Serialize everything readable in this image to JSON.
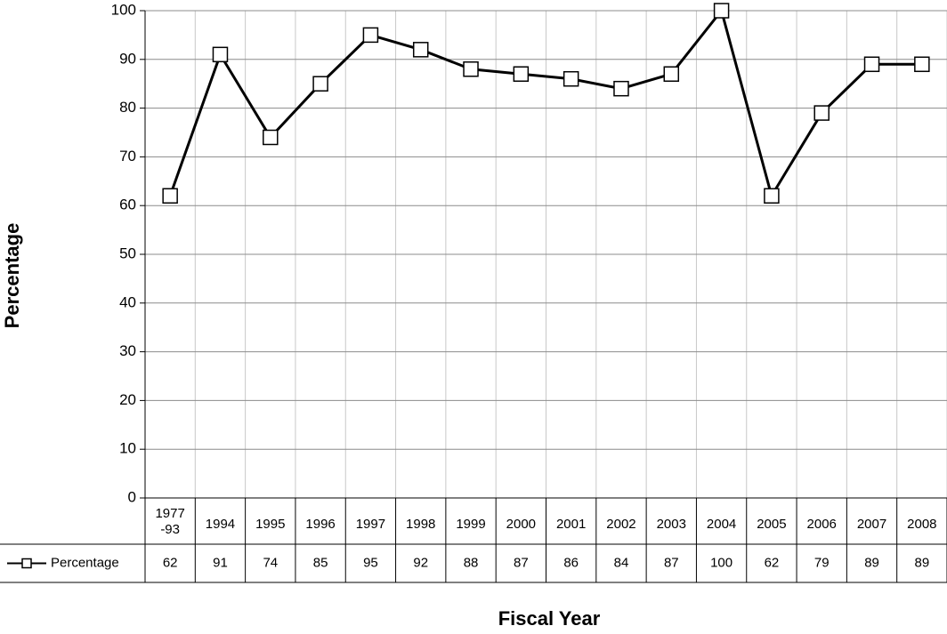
{
  "chart_data": {
    "type": "line",
    "x_label": "Fiscal Year",
    "y_label": "Percentage",
    "categories": [
      "1977-93",
      "1994",
      "1995",
      "1996",
      "1997",
      "1998",
      "1999",
      "2000",
      "2001",
      "2002",
      "2003",
      "2004",
      "2005",
      "2006",
      "2007",
      "2008"
    ],
    "series": [
      {
        "name": "Percentage",
        "color": "#000000",
        "values": [
          62,
          91,
          74,
          85,
          95,
          92,
          88,
          87,
          86,
          84,
          87,
          100,
          62,
          79,
          89,
          89
        ]
      }
    ],
    "ylim": [
      0,
      100
    ],
    "yticks": [
      0,
      10,
      20,
      30,
      40,
      50,
      60,
      70,
      80,
      90,
      100
    ],
    "grid": true,
    "legend": "data-table"
  }
}
